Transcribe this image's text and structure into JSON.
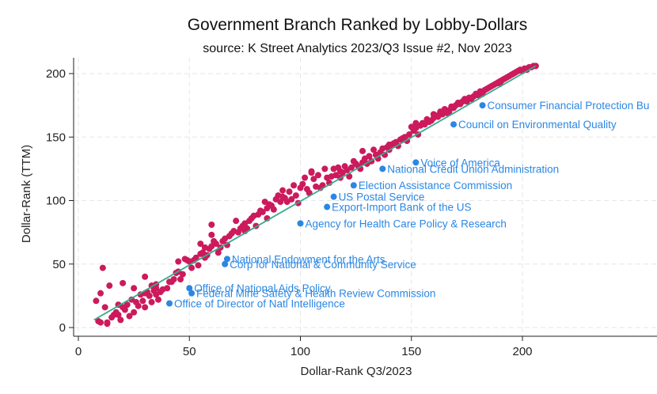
{
  "chart_data": {
    "type": "scatter",
    "title": "Government Branch Ranked by Lobby-Dollars",
    "subtitle": "source: K Street Analytics 2023/Q3 Issue #2, Nov 2023",
    "xlabel": "Dollar-Rank Q3/2023",
    "ylabel": "Dollar-Rank (TTM)",
    "xlim": [
      -2,
      255
    ],
    "ylim": [
      -5,
      213
    ],
    "xticks": [
      0,
      50,
      100,
      150,
      200
    ],
    "yticks": [
      0,
      50,
      100,
      150,
      200
    ],
    "grid": true,
    "fit_line": {
      "x": [
        7,
        206
      ],
      "y": [
        6,
        206
      ]
    },
    "colors": {
      "points": "#cc1a5c",
      "highlighted": "#2b87e3",
      "fit_line": "#3aaa8c",
      "label": "#2b87e3"
    },
    "series": [
      {
        "points": [
          [
            8,
            21
          ],
          [
            9,
            5
          ],
          [
            10,
            4
          ],
          [
            10,
            27
          ],
          [
            11,
            47
          ],
          [
            12,
            16
          ],
          [
            13,
            3
          ],
          [
            13,
            4
          ],
          [
            14,
            33
          ],
          [
            15,
            8
          ],
          [
            16,
            10
          ],
          [
            17,
            12
          ],
          [
            18,
            10
          ],
          [
            18,
            18
          ],
          [
            19,
            6
          ],
          [
            20,
            35
          ],
          [
            20,
            16
          ],
          [
            21,
            14
          ],
          [
            22,
            18
          ],
          [
            23,
            9
          ],
          [
            24,
            22
          ],
          [
            25,
            12
          ],
          [
            25,
            31
          ],
          [
            26,
            20
          ],
          [
            27,
            17
          ],
          [
            28,
            26
          ],
          [
            29,
            21
          ],
          [
            30,
            16
          ],
          [
            30,
            27
          ],
          [
            31,
            28
          ],
          [
            32,
            25
          ],
          [
            33,
            20
          ],
          [
            33,
            33
          ],
          [
            34,
            29
          ],
          [
            35,
            26
          ],
          [
            35,
            31
          ],
          [
            36,
            22
          ],
          [
            37,
            28
          ],
          [
            38,
            30
          ],
          [
            40,
            31
          ],
          [
            41,
            36
          ],
          [
            42,
            36
          ],
          [
            43,
            38
          ],
          [
            44,
            43
          ],
          [
            45,
            44
          ],
          [
            46,
            38
          ],
          [
            47,
            42
          ],
          [
            48,
            54
          ],
          [
            49,
            53
          ],
          [
            50,
            52
          ],
          [
            51,
            47
          ],
          [
            52,
            53
          ],
          [
            53,
            55
          ],
          [
            54,
            49
          ],
          [
            55,
            58
          ],
          [
            56,
            59
          ],
          [
            57,
            55
          ],
          [
            57,
            63
          ],
          [
            58,
            57
          ],
          [
            59,
            62
          ],
          [
            60,
            64
          ],
          [
            60,
            73
          ],
          [
            61,
            68
          ],
          [
            62,
            66
          ],
          [
            63,
            59
          ],
          [
            64,
            63
          ],
          [
            65,
            68
          ],
          [
            66,
            70
          ],
          [
            67,
            65
          ],
          [
            68,
            72
          ],
          [
            69,
            74
          ],
          [
            70,
            76
          ],
          [
            71,
            84
          ],
          [
            72,
            75
          ],
          [
            73,
            78
          ],
          [
            74,
            80
          ],
          [
            75,
            82
          ],
          [
            76,
            78
          ],
          [
            77,
            84
          ],
          [
            78,
            86
          ],
          [
            79,
            88
          ],
          [
            80,
            80
          ],
          [
            81,
            89
          ],
          [
            82,
            92
          ],
          [
            83,
            91
          ],
          [
            84,
            99
          ],
          [
            85,
            94
          ],
          [
            86,
            97
          ],
          [
            87,
            96
          ],
          [
            88,
            93
          ],
          [
            89,
            101
          ],
          [
            90,
            104
          ],
          [
            91,
            99
          ],
          [
            92,
            103
          ],
          [
            93,
            102
          ],
          [
            94,
            99
          ],
          [
            95,
            107
          ],
          [
            96,
            101
          ],
          [
            97,
            112
          ],
          [
            98,
            104
          ],
          [
            99,
            98
          ],
          [
            100,
            110
          ],
          [
            101,
            113
          ],
          [
            102,
            118
          ],
          [
            103,
            109
          ],
          [
            104,
            106
          ],
          [
            105,
            123
          ],
          [
            106,
            117
          ],
          [
            107,
            111
          ],
          [
            108,
            120
          ],
          [
            109,
            110
          ],
          [
            110,
            112
          ],
          [
            111,
            125
          ],
          [
            112,
            118
          ],
          [
            113,
            114
          ],
          [
            114,
            119
          ],
          [
            115,
            125
          ],
          [
            116,
            120
          ],
          [
            117,
            126
          ],
          [
            118,
            118
          ],
          [
            119,
            122
          ],
          [
            120,
            127
          ],
          [
            121,
            124
          ],
          [
            122,
            119
          ],
          [
            123,
            126
          ],
          [
            124,
            131
          ],
          [
            125,
            129
          ],
          [
            126,
            127
          ],
          [
            127,
            125
          ],
          [
            128,
            130
          ],
          [
            129,
            133
          ],
          [
            130,
            129
          ],
          [
            131,
            135
          ],
          [
            132,
            131
          ],
          [
            133,
            140
          ],
          [
            134,
            136
          ],
          [
            135,
            133
          ],
          [
            136,
            138
          ],
          [
            137,
            141
          ],
          [
            138,
            136
          ],
          [
            139,
            142
          ],
          [
            140,
            140
          ],
          [
            141,
            144
          ],
          [
            142,
            145
          ],
          [
            143,
            146
          ],
          [
            144,
            143
          ],
          [
            145,
            148
          ],
          [
            146,
            149
          ],
          [
            147,
            150
          ],
          [
            148,
            147
          ],
          [
            149,
            152
          ],
          [
            150,
            158
          ],
          [
            151,
            155
          ],
          [
            152,
            157
          ],
          [
            153,
            152
          ],
          [
            154,
            159
          ],
          [
            155,
            161
          ],
          [
            156,
            160
          ],
          [
            157,
            164
          ],
          [
            158,
            162
          ],
          [
            159,
            163
          ],
          [
            160,
            165
          ],
          [
            161,
            167
          ],
          [
            162,
            166
          ],
          [
            163,
            170
          ],
          [
            164,
            168
          ],
          [
            165,
            172
          ],
          [
            166,
            169
          ],
          [
            167,
            171
          ],
          [
            168,
            174
          ],
          [
            169,
            173
          ],
          [
            170,
            175
          ],
          [
            171,
            177
          ],
          [
            172,
            176
          ],
          [
            173,
            178
          ],
          [
            174,
            180
          ],
          [
            175,
            179
          ],
          [
            176,
            181
          ],
          [
            177,
            180
          ],
          [
            178,
            182
          ],
          [
            179,
            184
          ],
          [
            180,
            183
          ],
          [
            181,
            186
          ],
          [
            182,
            185
          ],
          [
            183,
            187
          ],
          [
            184,
            188
          ],
          [
            185,
            189
          ],
          [
            186,
            190
          ],
          [
            187,
            191
          ],
          [
            188,
            192
          ],
          [
            189,
            193
          ],
          [
            190,
            194
          ],
          [
            191,
            195
          ],
          [
            192,
            196
          ],
          [
            193,
            197
          ],
          [
            194,
            198
          ],
          [
            195,
            199
          ],
          [
            196,
            200
          ],
          [
            197,
            201
          ],
          [
            198,
            202
          ],
          [
            199,
            203
          ],
          [
            200,
            202
          ],
          [
            201,
            204
          ],
          [
            202,
            203
          ],
          [
            203,
            205
          ],
          [
            204,
            205
          ],
          [
            205,
            206
          ],
          [
            206,
            206
          ],
          [
            30,
            40
          ],
          [
            35,
            34
          ],
          [
            45,
            52
          ],
          [
            55,
            66
          ],
          [
            60,
            81
          ],
          [
            75,
            76
          ],
          [
            85,
            86
          ],
          [
            92,
            108
          ],
          [
            105,
            122
          ],
          [
            118,
            123
          ],
          [
            128,
            139
          ],
          [
            140,
            144
          ],
          [
            146,
            148
          ],
          [
            152,
            161
          ],
          [
            160,
            168
          ],
          [
            167,
            170
          ],
          [
            175,
            178
          ],
          [
            182,
            184
          ],
          [
            190,
            192
          ]
        ]
      },
      {
        "name": "highlighted",
        "points": [
          {
            "x": 182,
            "y": 175,
            "label": "Consumer Financial Protection Bu"
          },
          {
            "x": 169,
            "y": 160,
            "label": "Council on Environmental Quality"
          },
          {
            "x": 152,
            "y": 130,
            "label": "Voice of America"
          },
          {
            "x": 137,
            "y": 125,
            "label": "National Credit Union Administration"
          },
          {
            "x": 124,
            "y": 112,
            "label": "Election Assistance Commission"
          },
          {
            "x": 115,
            "y": 103,
            "label": "US Postal Service"
          },
          {
            "x": 112,
            "y": 95,
            "label": "Export-Import Bank of the US"
          },
          {
            "x": 100,
            "y": 82,
            "label": "Agency for Health Care Policy & Research"
          },
          {
            "x": 67,
            "y": 54,
            "label": "National Endowment for the Arts"
          },
          {
            "x": 66,
            "y": 50,
            "label": "Corp for National & Community Service"
          },
          {
            "x": 50,
            "y": 31,
            "label": "Office of National Aids Policy"
          },
          {
            "x": 51,
            "y": 27,
            "label": "Federal Mine Safety & Health Review Commission"
          },
          {
            "x": 41,
            "y": 19,
            "label": "Office of Director of Natl Intelligence"
          }
        ]
      }
    ]
  }
}
